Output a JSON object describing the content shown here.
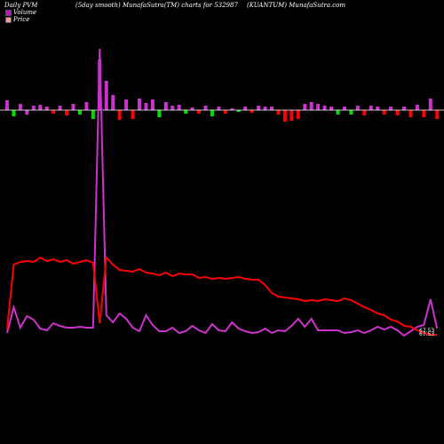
{
  "header": {
    "left": "Daily PVM",
    "middle": "(5day smooth) MunafaSutra(TM) charts for 532987",
    "right": "(KUANTUM) MunafaSutra.com"
  },
  "legend": [
    {
      "label": "Volume",
      "color": "#d400d4"
    },
    {
      "label": "Price",
      "color": "#ff9999"
    }
  ],
  "colors": {
    "background": "#000000",
    "baseline": "#ffffff",
    "price_line": "#ff0000",
    "volume_line": "#cc33cc",
    "volume_up": "#cc33cc",
    "volume_down": "#ff0000",
    "volume_green": "#00dd00"
  },
  "chart_data": {
    "type": "line",
    "end_labels": [
      "67.53",
      "67.53"
    ],
    "volume_bars": {
      "heights": [
        11,
        -7,
        7,
        -5,
        5,
        6,
        4,
        -4,
        5,
        -6,
        7,
        -5,
        9,
        -10,
        57,
        33,
        17,
        -11,
        12,
        -10,
        13,
        8,
        12,
        -8,
        9,
        5,
        6,
        -4,
        3,
        -4,
        5,
        -7,
        4,
        -4,
        2,
        -2,
        4,
        -3,
        5,
        4,
        4,
        -5,
        -13,
        -12,
        -10,
        7,
        9,
        7,
        5,
        4,
        -5,
        4,
        -5,
        5,
        -6,
        5,
        4,
        -5,
        4,
        -6,
        4,
        -8,
        6,
        -8,
        13,
        -10
      ],
      "colors": [
        "m",
        "g",
        "m",
        "m",
        "m",
        "m",
        "m",
        "r",
        "m",
        "r",
        "m",
        "g",
        "m",
        "g",
        "m",
        "m",
        "m",
        "r",
        "m",
        "r",
        "m",
        "m",
        "m",
        "g",
        "m",
        "m",
        "m",
        "g",
        "m",
        "r",
        "m",
        "g",
        "m",
        "r",
        "m",
        "g",
        "m",
        "r",
        "m",
        "m",
        "m",
        "r",
        "r",
        "r",
        "r",
        "m",
        "m",
        "m",
        "m",
        "m",
        "g",
        "m",
        "g",
        "m",
        "r",
        "m",
        "m",
        "r",
        "m",
        "r",
        "m",
        "r",
        "m",
        "r",
        "m",
        "r"
      ]
    },
    "series": [
      {
        "values": [
          49,
          122,
          125,
          126,
          125,
          130,
          126,
          128,
          125,
          127,
          123,
          125,
          127,
          124,
          56,
          130,
          122,
          116,
          115,
          114,
          117,
          113,
          112,
          110,
          113,
          109,
          112,
          111,
          111,
          107,
          108,
          106,
          107,
          106,
          107,
          108,
          106,
          105,
          105,
          99,
          90,
          86,
          85,
          84,
          83,
          81,
          82,
          81,
          83,
          82,
          81,
          84,
          82,
          78,
          74,
          71,
          67,
          65,
          60,
          58,
          53,
          52,
          48,
          45,
          43,
          43
        ]
      },
      {
        "values": [
          45,
          74,
          51,
          64,
          60,
          50,
          48,
          56,
          53,
          51,
          51,
          52,
          51,
          51,
          365,
          65,
          57,
          67,
          61,
          51,
          47,
          65,
          54,
          47,
          47,
          51,
          45,
          47,
          53,
          48,
          45,
          55,
          48,
          47,
          57,
          50,
          47,
          45,
          46,
          50,
          45,
          48,
          47,
          53,
          61,
          52,
          61,
          48,
          48,
          48,
          48,
          45,
          46,
          48,
          45,
          48,
          52,
          49,
          52,
          48,
          42,
          47,
          52,
          54,
          83,
          50
        ]
      }
    ]
  }
}
